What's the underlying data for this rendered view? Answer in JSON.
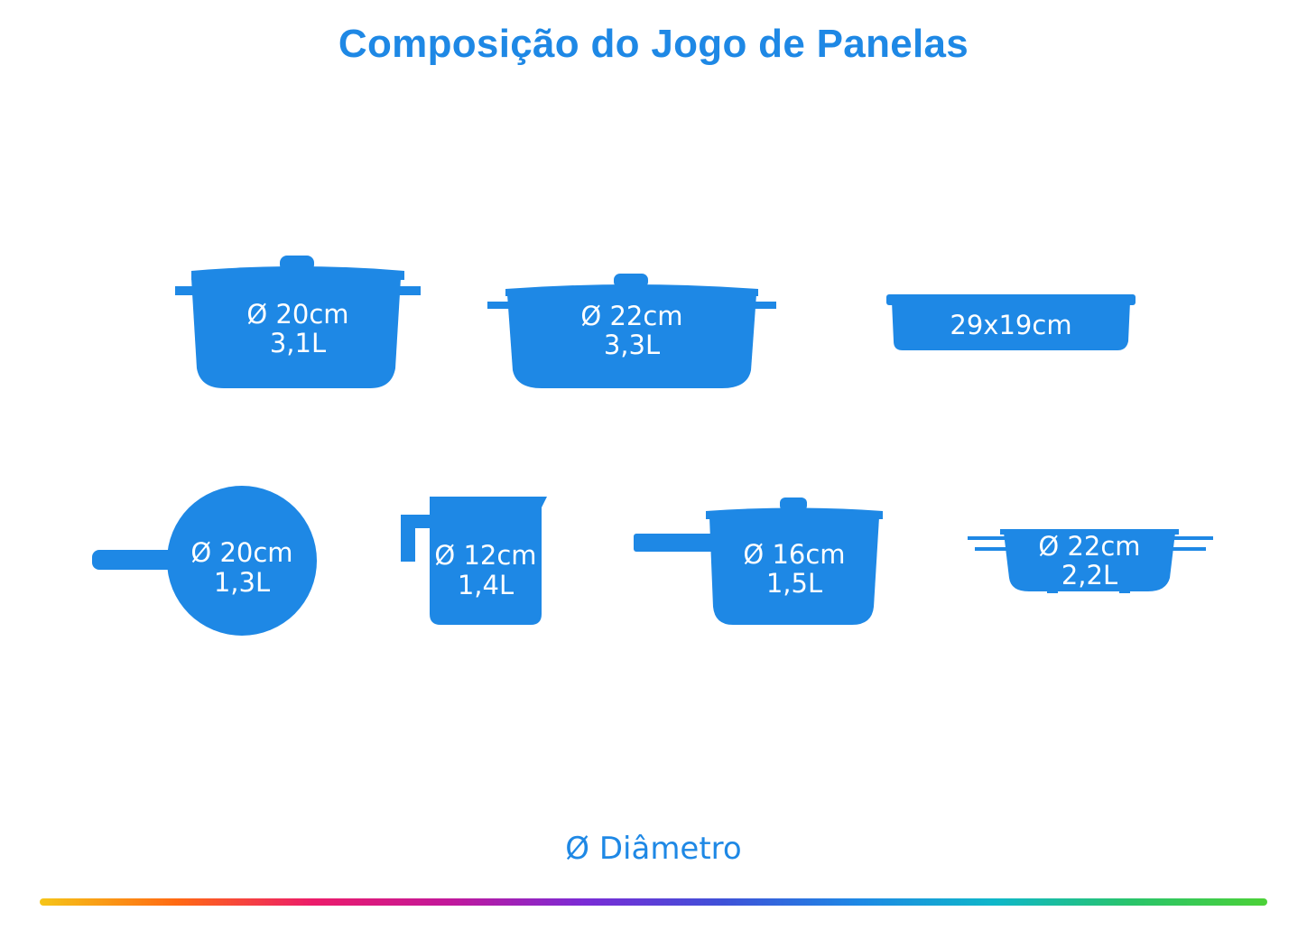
{
  "title": "Composição do Jogo de Panelas",
  "legend": "Ø Diâmetro",
  "colors": {
    "accent": "#1e88e5",
    "text_on_shape": "#ffffff",
    "background": "#ffffff"
  },
  "items": [
    {
      "kind": "pot-with-lid",
      "diameter": "Ø 20cm",
      "volume": "3,1L"
    },
    {
      "kind": "wide-pot-with-lid",
      "diameter": "Ø 22cm",
      "volume": "3,3L"
    },
    {
      "kind": "rectangular-pan",
      "size": "29x19cm"
    },
    {
      "kind": "frying-pan",
      "diameter": "Ø 20cm",
      "volume": "1,3L"
    },
    {
      "kind": "milk-jug",
      "diameter": "Ø 12cm",
      "volume": "1,4L"
    },
    {
      "kind": "saucepan-with-lid",
      "diameter": "Ø 16cm",
      "volume": "1,5L"
    },
    {
      "kind": "steamer-basket",
      "diameter": "Ø 22cm",
      "volume": "2,2L"
    }
  ]
}
